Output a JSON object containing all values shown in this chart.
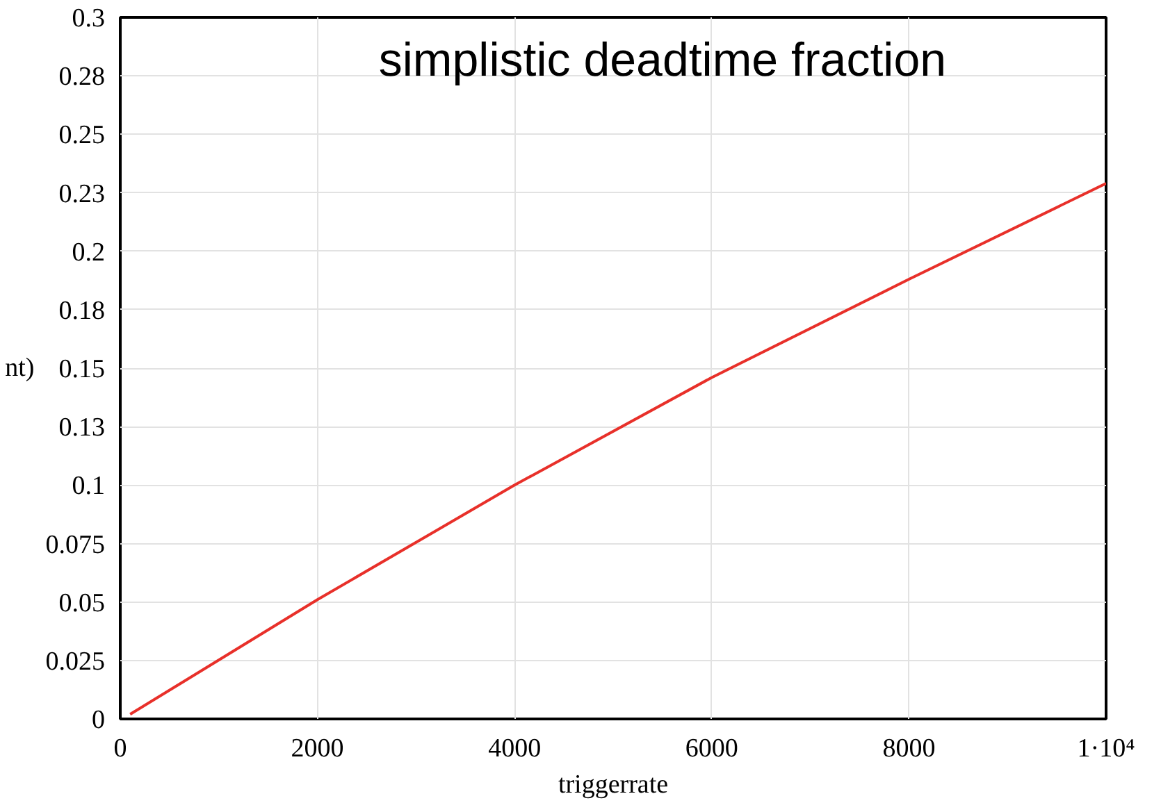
{
  "chart_data": {
    "type": "line",
    "title": "simplistic deadtime fraction",
    "xlabel": "triggerrate",
    "ylabel": "nt)",
    "x": [
      100,
      2000,
      4000,
      6000,
      8000,
      10000
    ],
    "series": [
      {
        "color": "#e8302a",
        "values": [
          0.002,
          0.051,
          0.1,
          0.146,
          0.188,
          0.229
        ]
      }
    ],
    "xlim": [
      0,
      10000
    ],
    "xticks": [
      0,
      2000,
      4000,
      6000,
      8000,
      {
        "value": 10000,
        "label": "1·10⁴"
      }
    ],
    "ylim": [
      0,
      0.3
    ],
    "yticks": [
      0,
      0.025,
      0.05,
      0.075,
      0.1,
      {
        "value": 0.125,
        "label": "0.13"
      },
      0.15,
      {
        "value": 0.175,
        "label": "0.18"
      },
      0.2,
      {
        "value": 0.225,
        "label": "0.23"
      },
      0.25,
      {
        "value": 0.275,
        "label": "0.28"
      },
      0.3
    ],
    "grid": true,
    "marker": "none",
    "line_style": "solid"
  }
}
